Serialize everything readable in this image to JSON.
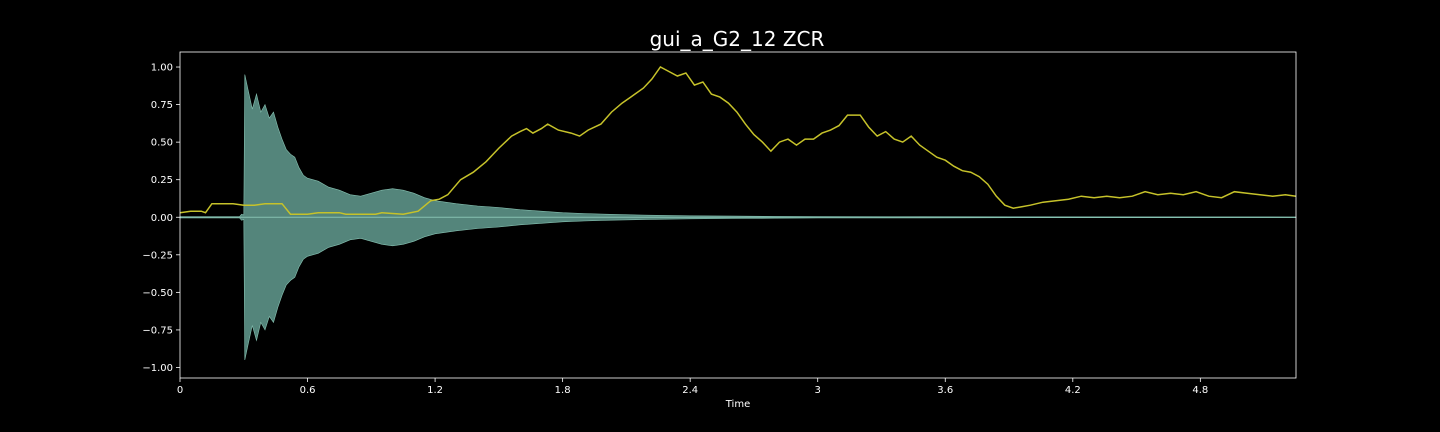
{
  "chart_data": {
    "type": "line",
    "title": "gui_a_G2_12 ZCR",
    "xlabel": "Time",
    "ylabel": "",
    "xlim": [
      0,
      5.25
    ],
    "ylim": [
      -1.07,
      1.1
    ],
    "x_ticks": [
      0,
      0.6,
      1.2,
      1.8,
      2.4,
      3.0,
      3.6,
      4.2,
      4.8
    ],
    "x_tick_labels": [
      "0",
      "0.6",
      "1.2",
      "1.8",
      "2.4",
      "3",
      "3.6",
      "4.2",
      "4.8"
    ],
    "y_ticks": [
      1.0,
      0.75,
      0.5,
      0.25,
      0.0,
      -0.25,
      -0.5,
      -0.75,
      -1.0
    ],
    "y_tick_labels": [
      "1.00",
      "0.75",
      "0.50",
      "0.25",
      "0.00",
      "−0.25",
      "−0.50",
      "−0.75",
      "−1.00"
    ],
    "grid": false,
    "colors": {
      "background": "#000000",
      "axes": "#ffffff",
      "waveform_fill": "#5d9488",
      "waveform_edge": "#86c2b2",
      "zcr_line": "#c6c22a"
    },
    "series": [
      {
        "kind": "waveform-envelope",
        "points": [
          [
            0.0,
            0.004
          ],
          [
            0.28,
            0.004
          ],
          [
            0.29,
            0.02
          ],
          [
            0.3,
            0.015
          ],
          [
            0.305,
            0.95
          ],
          [
            0.32,
            0.85
          ],
          [
            0.34,
            0.72
          ],
          [
            0.36,
            0.82
          ],
          [
            0.38,
            0.7
          ],
          [
            0.4,
            0.75
          ],
          [
            0.42,
            0.66
          ],
          [
            0.44,
            0.7
          ],
          [
            0.46,
            0.6
          ],
          [
            0.48,
            0.52
          ],
          [
            0.5,
            0.45
          ],
          [
            0.52,
            0.42
          ],
          [
            0.54,
            0.4
          ],
          [
            0.56,
            0.33
          ],
          [
            0.58,
            0.28
          ],
          [
            0.6,
            0.26
          ],
          [
            0.65,
            0.24
          ],
          [
            0.7,
            0.2
          ],
          [
            0.75,
            0.18
          ],
          [
            0.8,
            0.15
          ],
          [
            0.85,
            0.14
          ],
          [
            0.9,
            0.16
          ],
          [
            0.95,
            0.18
          ],
          [
            1.0,
            0.19
          ],
          [
            1.05,
            0.18
          ],
          [
            1.1,
            0.16
          ],
          [
            1.15,
            0.13
          ],
          [
            1.2,
            0.11
          ],
          [
            1.3,
            0.09
          ],
          [
            1.4,
            0.075
          ],
          [
            1.5,
            0.065
          ],
          [
            1.6,
            0.05
          ],
          [
            1.7,
            0.04
          ],
          [
            1.8,
            0.03
          ],
          [
            1.9,
            0.025
          ],
          [
            2.0,
            0.02
          ],
          [
            2.2,
            0.014
          ],
          [
            2.4,
            0.01
          ],
          [
            2.6,
            0.008
          ],
          [
            2.8,
            0.006
          ],
          [
            3.0,
            0.005
          ],
          [
            3.5,
            0.004
          ],
          [
            4.0,
            0.003
          ],
          [
            5.25,
            0.002
          ]
        ]
      },
      {
        "kind": "zcr",
        "points": [
          [
            0.0,
            0.03
          ],
          [
            0.05,
            0.04
          ],
          [
            0.1,
            0.04
          ],
          [
            0.12,
            0.03
          ],
          [
            0.15,
            0.09
          ],
          [
            0.2,
            0.09
          ],
          [
            0.25,
            0.09
          ],
          [
            0.3,
            0.08
          ],
          [
            0.35,
            0.08
          ],
          [
            0.4,
            0.09
          ],
          [
            0.48,
            0.09
          ],
          [
            0.52,
            0.02
          ],
          [
            0.6,
            0.02
          ],
          [
            0.65,
            0.03
          ],
          [
            0.75,
            0.03
          ],
          [
            0.78,
            0.02
          ],
          [
            0.85,
            0.02
          ],
          [
            0.92,
            0.02
          ],
          [
            0.95,
            0.03
          ],
          [
            1.05,
            0.02
          ],
          [
            1.12,
            0.04
          ],
          [
            1.18,
            0.11
          ],
          [
            1.22,
            0.12
          ],
          [
            1.26,
            0.15
          ],
          [
            1.32,
            0.25
          ],
          [
            1.38,
            0.3
          ],
          [
            1.44,
            0.37
          ],
          [
            1.5,
            0.46
          ],
          [
            1.56,
            0.54
          ],
          [
            1.6,
            0.57
          ],
          [
            1.63,
            0.59
          ],
          [
            1.66,
            0.56
          ],
          [
            1.7,
            0.59
          ],
          [
            1.73,
            0.62
          ],
          [
            1.78,
            0.58
          ],
          [
            1.84,
            0.56
          ],
          [
            1.88,
            0.54
          ],
          [
            1.92,
            0.58
          ],
          [
            1.98,
            0.62
          ],
          [
            2.03,
            0.7
          ],
          [
            2.08,
            0.76
          ],
          [
            2.12,
            0.8
          ],
          [
            2.18,
            0.86
          ],
          [
            2.22,
            0.92
          ],
          [
            2.26,
            1.0
          ],
          [
            2.3,
            0.97
          ],
          [
            2.34,
            0.94
          ],
          [
            2.38,
            0.96
          ],
          [
            2.42,
            0.88
          ],
          [
            2.46,
            0.9
          ],
          [
            2.5,
            0.82
          ],
          [
            2.54,
            0.8
          ],
          [
            2.58,
            0.76
          ],
          [
            2.62,
            0.7
          ],
          [
            2.66,
            0.62
          ],
          [
            2.7,
            0.55
          ],
          [
            2.74,
            0.5
          ],
          [
            2.78,
            0.44
          ],
          [
            2.82,
            0.5
          ],
          [
            2.86,
            0.52
          ],
          [
            2.9,
            0.48
          ],
          [
            2.94,
            0.52
          ],
          [
            2.98,
            0.52
          ],
          [
            3.02,
            0.56
          ],
          [
            3.06,
            0.58
          ],
          [
            3.1,
            0.61
          ],
          [
            3.14,
            0.68
          ],
          [
            3.2,
            0.68
          ],
          [
            3.24,
            0.6
          ],
          [
            3.28,
            0.54
          ],
          [
            3.32,
            0.57
          ],
          [
            3.36,
            0.52
          ],
          [
            3.4,
            0.5
          ],
          [
            3.44,
            0.54
          ],
          [
            3.48,
            0.48
          ],
          [
            3.52,
            0.44
          ],
          [
            3.56,
            0.4
          ],
          [
            3.6,
            0.38
          ],
          [
            3.64,
            0.34
          ],
          [
            3.68,
            0.31
          ],
          [
            3.72,
            0.3
          ],
          [
            3.76,
            0.27
          ],
          [
            3.8,
            0.22
          ],
          [
            3.84,
            0.14
          ],
          [
            3.88,
            0.08
          ],
          [
            3.92,
            0.06
          ],
          [
            3.96,
            0.07
          ],
          [
            4.0,
            0.08
          ],
          [
            4.06,
            0.1
          ],
          [
            4.12,
            0.11
          ],
          [
            4.18,
            0.12
          ],
          [
            4.24,
            0.14
          ],
          [
            4.3,
            0.13
          ],
          [
            4.36,
            0.14
          ],
          [
            4.42,
            0.13
          ],
          [
            4.48,
            0.14
          ],
          [
            4.54,
            0.17
          ],
          [
            4.6,
            0.15
          ],
          [
            4.66,
            0.16
          ],
          [
            4.72,
            0.15
          ],
          [
            4.78,
            0.17
          ],
          [
            4.84,
            0.14
          ],
          [
            4.9,
            0.13
          ],
          [
            4.96,
            0.17
          ],
          [
            5.02,
            0.16
          ],
          [
            5.08,
            0.15
          ],
          [
            5.14,
            0.14
          ],
          [
            5.2,
            0.15
          ],
          [
            5.25,
            0.14
          ]
        ]
      }
    ]
  }
}
